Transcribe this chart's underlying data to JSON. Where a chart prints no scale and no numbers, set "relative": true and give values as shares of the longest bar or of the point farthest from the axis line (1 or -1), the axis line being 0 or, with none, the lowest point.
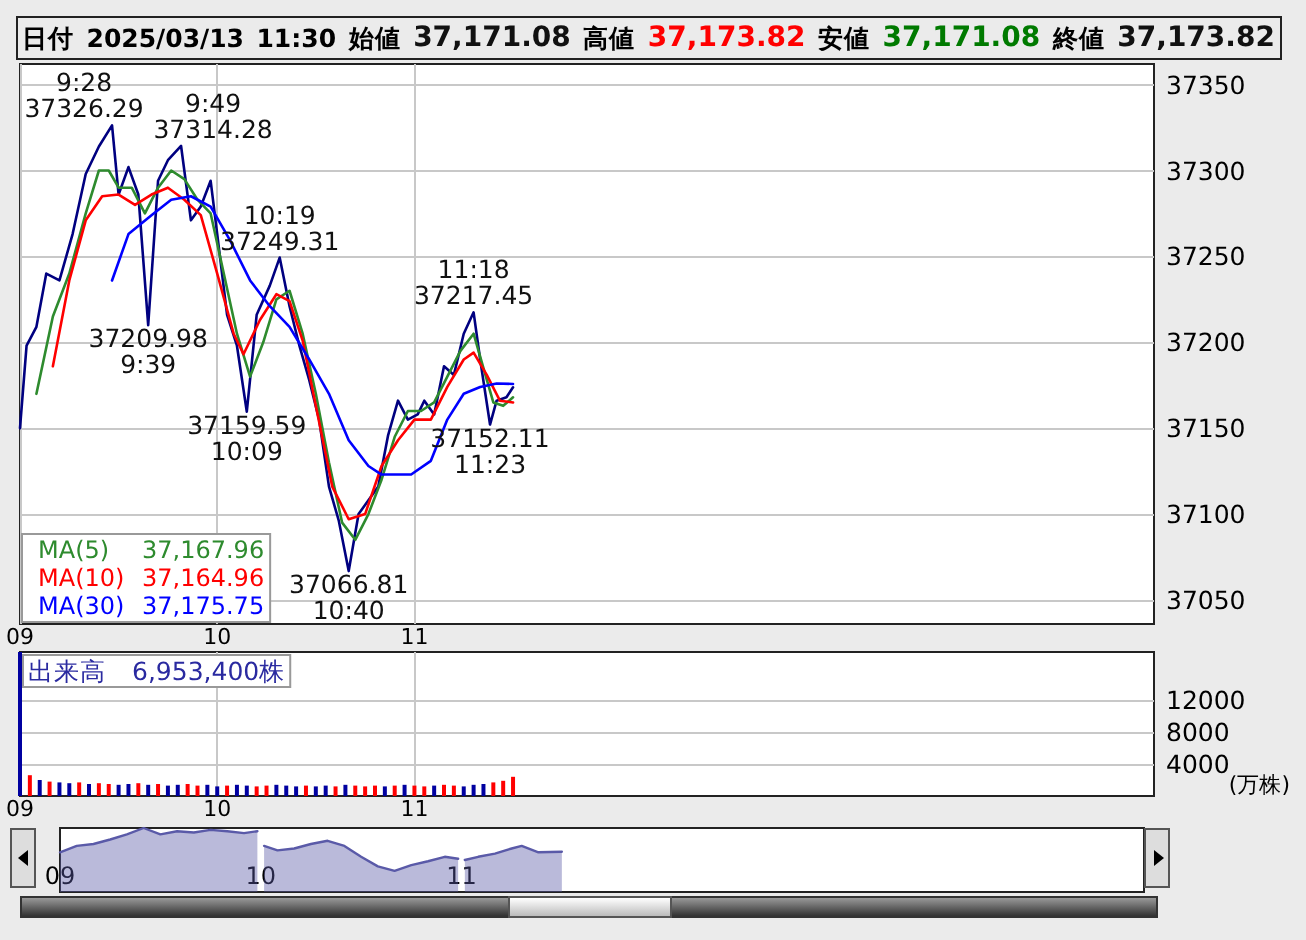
{
  "chart_data": [
    {
      "type": "line",
      "title": "日付 2025/03/13 11:30 始値 37,171.08 高値 37,173.82 安値 37,171.08 終値 37,173.82",
      "xlim": [
        9,
        14.75
      ],
      "xticks": [
        {
          "value": 9,
          "label": "09"
        },
        {
          "value": 10,
          "label": "10"
        },
        {
          "value": 11,
          "label": "11"
        }
      ],
      "ylim": [
        37036,
        37362
      ],
      "yticks": [
        37050,
        37100,
        37150,
        37200,
        37250,
        37300,
        37350
      ],
      "grid": true,
      "legend": "bottom left",
      "series": [
        {
          "color": "#000080",
          "x": [
            9.0,
            9.0333,
            9.0833,
            9.1333,
            9.2,
            9.2667,
            9.3333,
            9.4,
            9.4667,
            9.5,
            9.55,
            9.6,
            9.65,
            9.7,
            9.75,
            9.8167,
            9.8667,
            9.9167,
            9.9667,
            10.0,
            10.05,
            10.1,
            10.15,
            10.2,
            10.2667,
            10.3167,
            10.3667,
            10.4167,
            10.4667,
            10.5167,
            10.5667,
            10.6167,
            10.6667,
            10.7167,
            10.7667,
            10.8167,
            10.8667,
            10.9167,
            10.9667,
            11.0167,
            11.05,
            11.1,
            11.15,
            11.2,
            11.25,
            11.3,
            11.3333,
            11.3833,
            11.4167,
            11.4667,
            11.5
          ],
          "values": [
            37150,
            37198,
            37209,
            37240,
            37236,
            37263,
            37298,
            37314,
            37326.29,
            37286,
            37302,
            37286,
            37209.98,
            37294,
            37306,
            37314.28,
            37271,
            37279,
            37294,
            37263,
            37216,
            37198,
            37159.59,
            37216,
            37233,
            37249.31,
            37221,
            37198,
            37178,
            37155,
            37116,
            37096,
            37066.81,
            37100,
            37108,
            37116,
            37146,
            37166,
            37155,
            37158,
            37166,
            37158,
            37186,
            37181,
            37205,
            37217.45,
            37190,
            37152.11,
            37166,
            37168,
            37173.82
          ]
        },
        {
          "name": "MA(5)",
          "color": "#2e8b2e",
          "x": [
            9.0833,
            9.1667,
            9.25,
            9.3333,
            9.4,
            9.45,
            9.5,
            9.5667,
            9.6333,
            9.7,
            9.7667,
            9.8333,
            9.9,
            9.9667,
            10.0333,
            10.1,
            10.1667,
            10.2333,
            10.3,
            10.3667,
            10.4333,
            10.5,
            10.5667,
            10.6333,
            10.7,
            10.7667,
            10.8333,
            10.9,
            10.9667,
            11.0333,
            11.1,
            11.1667,
            11.2333,
            11.3,
            11.35,
            11.4,
            11.45,
            11.5
          ],
          "values": [
            37170,
            37215,
            37240,
            37275,
            37300,
            37300,
            37290,
            37290,
            37275,
            37290,
            37300,
            37295,
            37283,
            37275,
            37240,
            37205,
            37180,
            37200,
            37225,
            37230,
            37205,
            37170,
            37130,
            37095,
            37085,
            37100,
            37120,
            37145,
            37160,
            37160,
            37165,
            37180,
            37195,
            37205,
            37185,
            37165,
            37163,
            37167.96
          ]
        },
        {
          "name": "MA(10)",
          "color": "#ff0000",
          "x": [
            9.1667,
            9.25,
            9.3333,
            9.4167,
            9.5,
            9.5833,
            9.6667,
            9.75,
            9.8333,
            9.9167,
            10.0,
            10.0833,
            10.1333,
            10.2167,
            10.3,
            10.3667,
            10.4333,
            10.5,
            10.5833,
            10.6667,
            10.75,
            10.8333,
            10.9167,
            11.0,
            11.0833,
            11.1667,
            11.25,
            11.3,
            11.3667,
            11.4333,
            11.5
          ],
          "values": [
            37186,
            37236,
            37271,
            37285,
            37286,
            37280,
            37286,
            37290,
            37283,
            37274,
            37240,
            37205,
            37193,
            37213,
            37228,
            37224,
            37201,
            37163,
            37116,
            37097,
            37100,
            37128,
            37143,
            37155,
            37155,
            37174,
            37190,
            37194,
            37181,
            37166,
            37164.96
          ]
        },
        {
          "name": "MA(30)",
          "color": "#0000ff",
          "x": [
            9.4667,
            9.55,
            9.6667,
            9.7667,
            9.8667,
            9.9667,
            10.0667,
            10.1667,
            10.2667,
            10.3667,
            10.4667,
            10.5667,
            10.6667,
            10.7667,
            10.8333,
            10.9833,
            11.0833,
            11.1667,
            11.25,
            11.3333,
            11.4167,
            11.5
          ],
          "values": [
            37236,
            37263,
            37274,
            37283,
            37285,
            37279,
            37259,
            37236,
            37221,
            37209,
            37190,
            37170,
            37143,
            37128,
            37123,
            37123,
            37131,
            37155,
            37170,
            37174,
            37176,
            37175.75
          ]
        }
      ],
      "annotations": [
        "37,167.96",
        "37,164.96",
        "37,175.75",
        {
          "text": "9:28\n37326.29",
          "x": 9.4667,
          "y": 37326.29
        },
        {
          "text": "9:49\n37314.28",
          "x": 9.8167,
          "y": 37314.28
        },
        {
          "text": "37209.98\n9:39",
          "x": 9.65,
          "y": 37209.98
        },
        {
          "text": "10:19\n37249.31",
          "x": 10.3167,
          "y": 37249.31
        },
        {
          "text": "37159.59\n10:09",
          "x": 10.15,
          "y": 37159.59
        },
        {
          "text": "37066.81\n10:40",
          "x": 10.6667,
          "y": 37066.81
        },
        {
          "text": "11:18\n37217.45",
          "x": 11.3,
          "y": 37217.45
        },
        {
          "text": "37152.11\n11:23",
          "x": 11.3833,
          "y": 37152.11
        }
      ]
    },
    {
      "type": "bar",
      "ylabel": "(万株)",
      "annotations": [
        "出来高　6,953,400株"
      ],
      "grid": true,
      "xlim": [
        9,
        14.75
      ],
      "xticks": [
        {
          "value": 9,
          "label": "09"
        },
        {
          "value": 10,
          "label": "10"
        },
        {
          "value": 11,
          "label": "11"
        }
      ],
      "ylim": [
        0,
        18000
      ],
      "yticks": [
        4000,
        8000,
        12000
      ],
      "x": [
        9.0,
        9.05,
        9.1,
        9.15,
        9.2,
        9.25,
        9.3,
        9.35,
        9.4,
        9.45,
        9.5,
        9.55,
        9.6,
        9.65,
        9.7,
        9.75,
        9.8,
        9.85,
        9.9,
        9.95,
        10.0,
        10.05,
        10.1,
        10.15,
        10.2,
        10.25,
        10.3,
        10.35,
        10.4,
        10.45,
        10.5,
        10.55,
        10.6,
        10.65,
        10.7,
        10.75,
        10.8,
        10.85,
        10.9,
        10.95,
        11.0,
        11.05,
        11.1,
        11.15,
        11.2,
        11.25,
        11.3,
        11.35,
        11.4,
        11.45,
        11.5
      ],
      "values": [
        18000,
        2600,
        2000,
        1800,
        1700,
        1600,
        1700,
        1500,
        1600,
        1500,
        1400,
        1500,
        1600,
        1400,
        1500,
        1300,
        1400,
        1500,
        1300,
        1400,
        1200,
        1300,
        1400,
        1300,
        1200,
        1300,
        1400,
        1300,
        1200,
        1300,
        1200,
        1300,
        1200,
        1400,
        1300,
        1200,
        1300,
        1200,
        1300,
        1400,
        1300,
        1200,
        1300,
        1400,
        1300,
        1200,
        1400,
        1500,
        1700,
        1900,
        2400
      ],
      "colors": [
        "#0000a0",
        "#ff0000",
        "#0000a0",
        "#ff0000",
        "#0000a0",
        "#0000a0",
        "#ff0000",
        "#0000a0",
        "#ff0000",
        "#ff0000",
        "#0000a0",
        "#0000a0",
        "#ff0000",
        "#0000a0",
        "#ff0000",
        "#0000a0",
        "#0000a0",
        "#ff0000",
        "#ff0000",
        "#0000a0",
        "#0000a0",
        "#ff0000",
        "#0000a0",
        "#0000a0",
        "#ff0000",
        "#ff0000",
        "#0000a0",
        "#0000a0",
        "#0000a0",
        "#ff0000",
        "#0000a0",
        "#0000a0",
        "#ff0000",
        "#0000a0",
        "#ff0000",
        "#ff0000",
        "#ff0000",
        "#0000a0",
        "#ff0000",
        "#0000a0",
        "#ff0000",
        "#ff0000",
        "#0000a0",
        "#ff0000",
        "#ff0000",
        "#0000a0",
        "#0000a0",
        "#0000a0",
        "#ff0000",
        "#ff0000",
        "#ff0000"
      ]
    },
    {
      "type": "area",
      "relative": true,
      "tick_labels": "x",
      "xlim": [
        9,
        14.4
      ],
      "xticks": [
        {
          "value": 9,
          "label": "09"
        },
        {
          "value": 10,
          "label": "10"
        },
        {
          "value": 11,
          "label": "11"
        }
      ],
      "series": [
        {
          "color": "#5a5aa8",
          "x": [
            9.0,
            9.0833,
            9.1667,
            9.25,
            9.3333,
            9.4167,
            9.5,
            9.5833,
            9.6667,
            9.75,
            9.8333,
            9.9167,
            9.9833,
            10.0,
            10.0167,
            10.0833,
            10.1667,
            10.25,
            10.3333,
            10.4167,
            10.5,
            10.5833,
            10.6667,
            10.75,
            10.8333,
            10.9167,
            10.9833,
            11.0,
            11.0167,
            11.0833,
            11.1667,
            11.25,
            11.3,
            11.3833,
            11.5
          ],
          "values": [
            0.62,
            0.72,
            0.75,
            0.82,
            0.9,
            1.0,
            0.9,
            0.95,
            0.93,
            0.97,
            0.95,
            0.92,
            0.95,
            null,
            0.72,
            0.65,
            0.68,
            0.75,
            0.8,
            0.72,
            0.55,
            0.4,
            0.33,
            0.42,
            0.48,
            0.55,
            0.52,
            null,
            0.5,
            0.55,
            0.6,
            0.68,
            0.72,
            0.62,
            0.63
          ]
        }
      ]
    }
  ]
}
